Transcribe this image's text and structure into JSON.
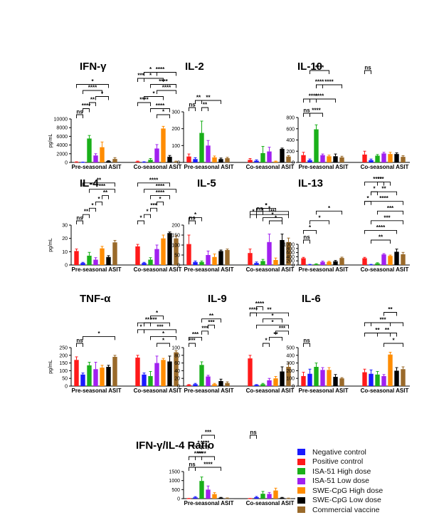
{
  "colors": {
    "Negative control": "#1a1aff",
    "Positive control": "#ff1a1a",
    "ISA-51 High dose": "#1ab01a",
    "ISA-51 Low dose": "#a020f0",
    "SWE-CpG High dose": "#ff8c00",
    "SWE-CpG Low dose": "#000000",
    "Commercial vaccine": "#9a6a2a"
  },
  "legend": {
    "entries": [
      "Negative control",
      "Positive control",
      "ISA-51 High dose",
      "ISA-51 Low dose",
      "SWE-CpG High dose",
      "SWE-CpG Low dose",
      "Commercial vaccine"
    ]
  },
  "chart_data": [
    {
      "type": "bar",
      "title": "IFN-γ",
      "ylabel": "pg/mL",
      "ylim": [
        0,
        10000
      ],
      "yticks": [
        "0",
        "2000",
        "4000",
        "6000",
        "8000",
        "10000"
      ],
      "categories": [
        "Pre-seasonal ASIT",
        "Co-seasonal ASIT"
      ],
      "series": [
        {
          "name": "Positive control",
          "values": [
            100,
            200
          ],
          "errors": [
            50,
            100
          ]
        },
        {
          "name": "Negative control",
          "values": [
            50,
            100
          ],
          "errors": [
            30,
            50
          ]
        },
        {
          "name": "ISA-51 High dose",
          "values": [
            5500,
            600
          ],
          "errors": [
            700,
            300
          ]
        },
        {
          "name": "ISA-51 Low dose",
          "values": [
            1600,
            3200
          ],
          "errors": [
            400,
            900
          ]
        },
        {
          "name": "SWE-CpG High dose",
          "values": [
            3500,
            7800
          ],
          "errors": [
            1200,
            500
          ]
        },
        {
          "name": "SWE-CpG Low dose",
          "values": [
            300,
            1300
          ],
          "errors": [
            100,
            300
          ]
        },
        {
          "name": "Commercial vaccine",
          "values": [
            800,
            200
          ],
          "errors": [
            300,
            100
          ]
        }
      ],
      "significance": [
        "ns",
        "****",
        "**",
        "*",
        "****",
        "*",
        "***",
        "*",
        "*",
        "****",
        "****",
        "*",
        "****",
        "****",
        "*",
        "****"
      ]
    },
    {
      "type": "bar",
      "title": "IL-2",
      "ylabel": "",
      "ylim": [
        0,
        300
      ],
      "yticks": [
        "0",
        "100",
        "200",
        "300"
      ],
      "categories": [
        "Pre-seasonal ASIT",
        "Co-seasonal ASIT"
      ],
      "series": [
        {
          "name": "Positive control",
          "values": [
            35,
            15
          ],
          "errors": [
            15,
            8
          ]
        },
        {
          "name": "Negative control",
          "values": [
            20,
            10
          ],
          "errors": [
            8,
            5
          ]
        },
        {
          "name": "ISA-51 High dose",
          "values": [
            175,
            55
          ],
          "errors": [
            70,
            40
          ]
        },
        {
          "name": "ISA-51 Low dose",
          "values": [
            100,
            65
          ],
          "errors": [
            30,
            25
          ]
        },
        {
          "name": "SWE-CpG High dose",
          "values": [
            30,
            5
          ],
          "errors": [
            8,
            3
          ]
        },
        {
          "name": "SWE-CpG Low dose",
          "values": [
            20,
            80
          ],
          "errors": [
            6,
            5
          ]
        },
        {
          "name": "Commercial vaccine",
          "values": [
            25,
            35
          ],
          "errors": [
            5,
            6
          ]
        }
      ],
      "significance": [
        "ns",
        "**",
        "**",
        "**"
      ]
    },
    {
      "type": "bar",
      "title": "IL-10",
      "ylabel": "",
      "ylim": [
        0,
        800
      ],
      "yticks": [
        "0",
        "200",
        "400",
        "600",
        "800"
      ],
      "categories": [
        "Pre-seasonal ASIT",
        "Co-seasonal ASIT"
      ],
      "series": [
        {
          "name": "Positive control",
          "values": [
            130,
            140
          ],
          "errors": [
            50,
            60
          ]
        },
        {
          "name": "Negative control",
          "values": [
            40,
            40
          ],
          "errors": [
            20,
            20
          ]
        },
        {
          "name": "ISA-51 High dose",
          "values": [
            590,
            120
          ],
          "errors": [
            80,
            20
          ]
        },
        {
          "name": "ISA-51 Low dose",
          "values": [
            130,
            160
          ],
          "errors": [
            20,
            20
          ]
        },
        {
          "name": "SWE-CpG High dose",
          "values": [
            110,
            150
          ],
          "errors": [
            20,
            30
          ]
        },
        {
          "name": "SWE-CpG Low dose",
          "values": [
            110,
            150
          ],
          "errors": [
            40,
            20
          ]
        },
        {
          "name": "Commercial vaccine",
          "values": [
            90,
            100
          ],
          "errors": [
            20,
            20
          ]
        }
      ],
      "significance": [
        "ns",
        "****",
        "****",
        "****",
        "****",
        "****",
        "****",
        "ns"
      ]
    },
    {
      "type": "bar",
      "title": "IL-4",
      "ylabel": "pg/mL",
      "ylim": [
        0,
        30
      ],
      "yticks": [
        "0",
        "10",
        "20",
        "30"
      ],
      "categories": [
        "Pre-seasonal ASIT",
        "Co-seasonal ASIT"
      ],
      "series": [
        {
          "name": "Positive control",
          "values": [
            10.5,
            14
          ],
          "errors": [
            1.5,
            1.5
          ]
        },
        {
          "name": "Negative control",
          "values": [
            1.5,
            1.5
          ],
          "errors": [
            0.5,
            0.5
          ]
        },
        {
          "name": "ISA-51 High dose",
          "values": [
            7,
            4
          ],
          "errors": [
            2.5,
            1.5
          ]
        },
        {
          "name": "ISA-51 Low dose",
          "values": [
            4,
            12
          ],
          "errors": [
            1.5,
            3
          ]
        },
        {
          "name": "SWE-CpG High dose",
          "values": [
            12.5,
            20
          ],
          "errors": [
            1.5,
            2.5
          ]
        },
        {
          "name": "SWE-CpG Low dose",
          "values": [
            6,
            24
          ],
          "errors": [
            1,
            0.8
          ]
        },
        {
          "name": "Commercial vaccine",
          "values": [
            17,
            20
          ],
          "errors": [
            1.5,
            2
          ]
        }
      ],
      "significance": [
        "ns",
        "**",
        "*",
        "*",
        "**",
        "***",
        "**",
        "*",
        "*",
        "***",
        "*",
        "****",
        "****",
        "****"
      ]
    },
    {
      "type": "bar",
      "title": "IL-5",
      "ylabel": "",
      "ylim": [
        0,
        200
      ],
      "yticks": [
        "0",
        "50",
        "100",
        "150",
        "200"
      ],
      "categories": [
        "Pre-seasonal ASIT",
        "Co-seasonal ASIT"
      ],
      "series": [
        {
          "name": "Positive control",
          "values": [
            105,
            60
          ],
          "errors": [
            45,
            20
          ]
        },
        {
          "name": "Negative control",
          "values": [
            15,
            10
          ],
          "errors": [
            5,
            5
          ]
        },
        {
          "name": "ISA-51 High dose",
          "values": [
            15,
            20
          ],
          "errors": [
            5,
            8
          ]
        },
        {
          "name": "ISA-51 Low dose",
          "values": [
            50,
            115
          ],
          "errors": [
            20,
            40
          ]
        },
        {
          "name": "SWE-CpG High dose",
          "values": [
            40,
            25
          ],
          "errors": [
            15,
            10
          ]
        },
        {
          "name": "SWE-CpG Low dose",
          "values": [
            70,
            125
          ],
          "errors": [
            5,
            30
          ]
        },
        {
          "name": "Commercial vaccine",
          "values": [
            75,
            115
          ],
          "errors": [
            5,
            20
          ]
        }
      ],
      "significance": [
        "ns",
        "*",
        "*",
        "ns",
        "*",
        "*",
        "*",
        "**",
        "*",
        "*"
      ]
    },
    {
      "type": "bar",
      "title": "IL-13",
      "ylabel": "",
      "ylim": [
        0,
        1000
      ],
      "yticks": [
        "0",
        "200",
        "400",
        "600",
        "800",
        "1000"
      ],
      "categories": [
        "Pre-seasonal ASIT",
        "Co-seasonal ASIT"
      ],
      "series": [
        {
          "name": "Positive control",
          "values": [
            330,
            330
          ],
          "errors": [
            40,
            40
          ]
        },
        {
          "name": "Negative control",
          "values": [
            20,
            20
          ],
          "errors": [
            10,
            10
          ]
        },
        {
          "name": "ISA-51 High dose",
          "values": [
            40,
            80
          ],
          "errors": [
            20,
            30
          ]
        },
        {
          "name": "ISA-51 Low dose",
          "values": [
            150,
            510
          ],
          "errors": [
            40,
            40
          ]
        },
        {
          "name": "SWE-CpG High dose",
          "values": [
            150,
            440
          ],
          "errors": [
            30,
            40
          ]
        },
        {
          "name": "SWE-CpG Low dose",
          "values": [
            180,
            640
          ],
          "errors": [
            40,
            130
          ]
        },
        {
          "name": "Commercial vaccine",
          "values": [
            340,
            520
          ],
          "errors": [
            40,
            90
          ]
        }
      ],
      "significance": [
        "ns",
        "*",
        "*",
        "*",
        "*",
        "*",
        "***",
        "**",
        "****",
        "***",
        "***",
        "****",
        "**",
        "****"
      ]
    },
    {
      "type": "bar",
      "title": "TNF-α",
      "ylabel": "pg/mL",
      "ylim": [
        0,
        250
      ],
      "yticks": [
        "0",
        "50",
        "100",
        "150",
        "200",
        "250"
      ],
      "categories": [
        "Pre-seasonal ASIT",
        "Co-seasonal ASIT"
      ],
      "series": [
        {
          "name": "Positive control",
          "values": [
            170,
            185
          ],
          "errors": [
            20,
            15
          ]
        },
        {
          "name": "Negative control",
          "values": [
            75,
            75
          ],
          "errors": [
            10,
            10
          ]
        },
        {
          "name": "ISA-51 High dose",
          "values": [
            135,
            65
          ],
          "errors": [
            20,
            30
          ]
        },
        {
          "name": "ISA-51 Low dose",
          "values": [
            110,
            150
          ],
          "errors": [
            45,
            45
          ]
        },
        {
          "name": "SWE-CpG High dose",
          "values": [
            120,
            170
          ],
          "errors": [
            15,
            10
          ]
        },
        {
          "name": "SWE-CpG Low dose",
          "values": [
            125,
            160
          ],
          "errors": [
            10,
            35
          ]
        },
        {
          "name": "Commercial vaccine",
          "values": [
            190,
            220
          ],
          "errors": [
            10,
            10
          ]
        }
      ],
      "significance": [
        "ns",
        "*",
        "*",
        "**",
        "*",
        "*",
        "*",
        "***",
        "***"
      ]
    },
    {
      "type": "bar",
      "title": "IL-9",
      "ylabel": "",
      "ylim": [
        0,
        100
      ],
      "yticks": [
        "0",
        "20",
        "40",
        "60",
        "80",
        "100"
      ],
      "categories": [
        "Pre-seasonal ASIT",
        "Co-seasonal ASIT"
      ],
      "series": [
        {
          "name": "Positive control",
          "values": [
            3,
            72
          ],
          "errors": [
            1,
            8
          ]
        },
        {
          "name": "Negative control",
          "values": [
            5,
            3
          ],
          "errors": [
            2,
            1
          ]
        },
        {
          "name": "ISA-51 High dose",
          "values": [
            55,
            5
          ],
          "errors": [
            8,
            2
          ]
        },
        {
          "name": "ISA-51 Low dose",
          "values": [
            25,
            15
          ],
          "errors": [
            3,
            5
          ]
        },
        {
          "name": "SWE-CpG High dose",
          "values": [
            5,
            20
          ],
          "errors": [
            2,
            5
          ]
        },
        {
          "name": "SWE-CpG Low dose",
          "values": [
            13,
            38
          ],
          "errors": [
            5,
            12
          ]
        },
        {
          "name": "Commercial vaccine",
          "values": [
            8,
            50
          ],
          "errors": [
            3,
            10
          ]
        }
      ],
      "significance": [
        "***",
        "***",
        "***",
        "***",
        "**",
        "****",
        "****",
        "*",
        "**",
        "***",
        "*",
        "*",
        "**"
      ]
    },
    {
      "type": "bar",
      "title": "IL-6",
      "ylabel": "",
      "ylim": [
        0,
        500
      ],
      "yticks": [
        "0",
        "100",
        "200",
        "300",
        "400",
        "500"
      ],
      "categories": [
        "Pre-seasonal ASIT",
        "Co-seasonal ASIT"
      ],
      "series": [
        {
          "name": "Positive control",
          "values": [
            130,
            180
          ],
          "errors": [
            50,
            40
          ]
        },
        {
          "name": "Negative control",
          "values": [
            160,
            160
          ],
          "errors": [
            60,
            50
          ]
        },
        {
          "name": "ISA-51 High dose",
          "values": [
            250,
            150
          ],
          "errors": [
            50,
            40
          ]
        },
        {
          "name": "ISA-51 Low dose",
          "values": [
            210,
            130
          ],
          "errors": [
            30,
            20
          ]
        },
        {
          "name": "SWE-CpG High dose",
          "values": [
            210,
            410
          ],
          "errors": [
            30,
            30
          ]
        },
        {
          "name": "SWE-CpG Low dose",
          "values": [
            120,
            200
          ],
          "errors": [
            30,
            40
          ]
        },
        {
          "name": "Commercial vaccine",
          "values": [
            100,
            220
          ],
          "errors": [
            10,
            30
          ]
        }
      ],
      "significance": [
        "ns",
        "**",
        "*",
        "**",
        "*",
        "**",
        "**"
      ]
    },
    {
      "type": "bar",
      "title": "IFN-γ/IL-4 Ratio",
      "ylabel": "",
      "ylim": [
        0,
        1500
      ],
      "yticks": [
        "0",
        "500",
        "1000",
        "1500"
      ],
      "categories": [
        "Pre-seasonal ASIT",
        "Co-seasonal ASIT"
      ],
      "series": [
        {
          "name": "Positive control",
          "values": [
            10,
            10
          ],
          "errors": [
            5,
            5
          ]
        },
        {
          "name": "Negative control",
          "values": [
            70,
            80
          ],
          "errors": [
            40,
            40
          ]
        },
        {
          "name": "ISA-51 High dose",
          "values": [
            980,
            270
          ],
          "errors": [
            220,
            130
          ]
        },
        {
          "name": "ISA-51 Low dose",
          "values": [
            500,
            260
          ],
          "errors": [
            200,
            80
          ]
        },
        {
          "name": "SWE-CpG High dose",
          "values": [
            250,
            450
          ],
          "errors": [
            80,
            130
          ]
        },
        {
          "name": "SWE-CpG Low dose",
          "values": [
            50,
            50
          ],
          "errors": [
            20,
            20
          ]
        },
        {
          "name": "Commercial vaccine",
          "values": [
            30,
            20
          ],
          "errors": [
            10,
            10
          ]
        }
      ],
      "significance": [
        "ns",
        "****",
        "****",
        "***",
        "****",
        "****",
        "*",
        "ns"
      ]
    }
  ]
}
